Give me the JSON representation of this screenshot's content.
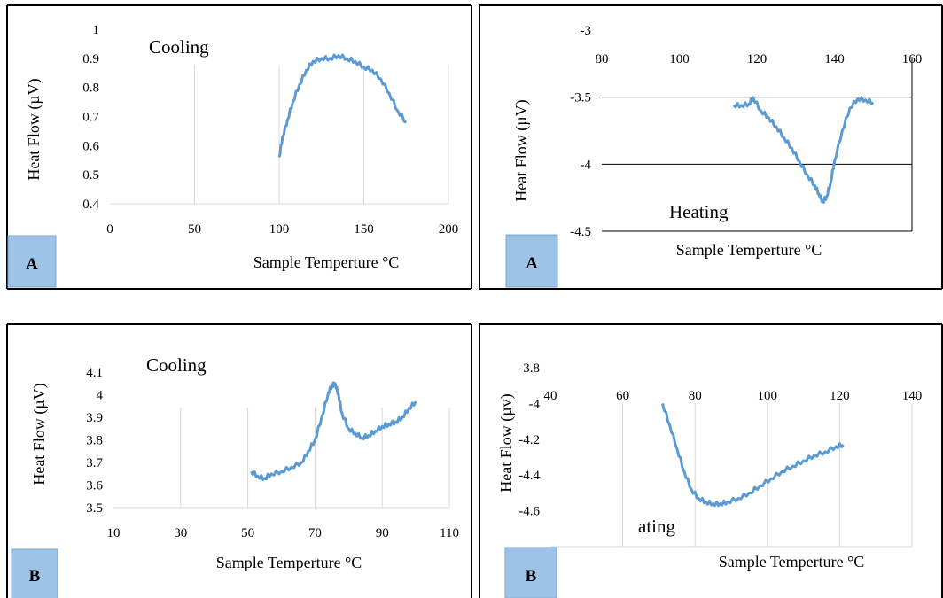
{
  "chart_data": [
    {
      "type": "line",
      "panel": "top-left",
      "title": "",
      "annotation": "Cooling",
      "badge": "A",
      "xlabel": "Sample Temperture °C",
      "ylabel": "Heat Flow (µV)",
      "xlim": [
        0,
        200
      ],
      "ylim": [
        0.4,
        1.0
      ],
      "xticks": [
        "0",
        "50",
        "100",
        "150",
        "200"
      ],
      "yticks": [
        "0.4",
        "0.5",
        "0.6",
        "0.7",
        "0.8",
        "0.9",
        "1"
      ],
      "grid": "vertical",
      "line_color": "#5b9bd5",
      "series": [
        {
          "x": [
            100,
            102,
            105,
            108,
            112,
            116,
            120,
            125,
            130,
            135,
            140,
            145,
            150,
            155,
            160,
            165,
            170,
            175
          ],
          "y": [
            0.56,
            0.63,
            0.69,
            0.75,
            0.81,
            0.86,
            0.89,
            0.9,
            0.9,
            0.91,
            0.9,
            0.89,
            0.87,
            0.86,
            0.83,
            0.78,
            0.72,
            0.68
          ]
        }
      ]
    },
    {
      "type": "line",
      "panel": "top-right",
      "title": "",
      "annotation": "Heating",
      "badge": "A",
      "xlabel": "Sample Temperture °C",
      "ylabel": "Heat Flow (µV)",
      "xlim": [
        80,
        160
      ],
      "ylim": [
        -4.5,
        -3
      ],
      "xticks": [
        "80",
        "100",
        "120",
        "140",
        "160"
      ],
      "yticks": [
        "-3",
        "-3.5",
        "-4",
        "-4.5"
      ],
      "grid": "horizontal",
      "line_color": "#5b9bd5",
      "series": [
        {
          "x": [
            114,
            116,
            118,
            119,
            121,
            123,
            125,
            127,
            129,
            131,
            133,
            135,
            136,
            137,
            138,
            139,
            140,
            142,
            144,
            146,
            148,
            150
          ],
          "y": [
            -3.56,
            -3.56,
            -3.55,
            -3.5,
            -3.6,
            -3.65,
            -3.72,
            -3.8,
            -3.88,
            -3.98,
            -4.08,
            -4.16,
            -4.22,
            -4.28,
            -4.24,
            -4.14,
            -3.98,
            -3.75,
            -3.58,
            -3.51,
            -3.52,
            -3.54
          ]
        }
      ]
    },
    {
      "type": "line",
      "panel": "bottom-left",
      "title": "",
      "annotation": "Cooling",
      "badge": "B",
      "xlabel": "Sample Temperture °C",
      "ylabel": "Heat Flow (µV)",
      "xlim": [
        10,
        110
      ],
      "ylim": [
        3.5,
        4.1
      ],
      "xticks": [
        "10",
        "30",
        "50",
        "70",
        "90",
        "110"
      ],
      "yticks": [
        "3.5",
        "3.6",
        "3.7",
        "3.8",
        "3.9",
        "4",
        "4.1"
      ],
      "grid": "vertical",
      "line_color": "#5b9bd5",
      "series": [
        {
          "x": [
            51,
            53,
            55,
            57,
            60,
            63,
            66,
            68,
            70,
            72,
            74,
            75,
            76,
            77,
            78,
            80,
            82,
            84,
            86,
            88,
            90,
            92,
            94,
            96,
            98,
            100
          ],
          "y": [
            3.66,
            3.64,
            3.63,
            3.65,
            3.66,
            3.68,
            3.7,
            3.75,
            3.8,
            3.9,
            4.01,
            4.04,
            4.05,
            4.0,
            3.92,
            3.85,
            3.83,
            3.81,
            3.82,
            3.84,
            3.86,
            3.87,
            3.88,
            3.9,
            3.94,
            3.97
          ]
        }
      ]
    },
    {
      "type": "line",
      "panel": "bottom-right",
      "title": "",
      "annotation": "ating",
      "badge": "B",
      "xlabel": "Sample Temperture °C",
      "ylabel": "Heat Flow (µv)",
      "xlim": [
        40,
        140
      ],
      "ylim": [
        -4.8,
        -3.8
      ],
      "xticks": [
        "40",
        "60",
        "80",
        "100",
        "120",
        "140"
      ],
      "yticks": [
        "-3.8",
        "-4",
        "-4.2",
        "-4.4",
        "-4.6"
      ],
      "grid": "vertical",
      "line_color": "#5b9bd5",
      "series": [
        {
          "x": [
            71,
            73,
            75,
            77,
            79,
            81,
            83,
            85,
            87,
            89,
            92,
            95,
            98,
            101,
            104,
            107,
            110,
            113,
            116,
            119,
            121
          ],
          "y": [
            -4.0,
            -4.12,
            -4.25,
            -4.38,
            -4.48,
            -4.53,
            -4.55,
            -4.56,
            -4.56,
            -4.55,
            -4.53,
            -4.5,
            -4.46,
            -4.42,
            -4.38,
            -4.35,
            -4.32,
            -4.29,
            -4.27,
            -4.24,
            -4.23
          ]
        }
      ]
    }
  ]
}
